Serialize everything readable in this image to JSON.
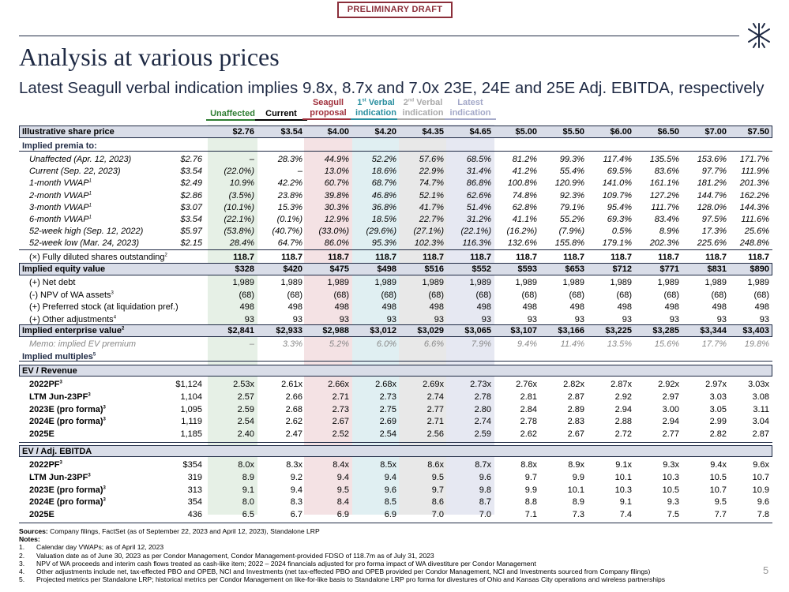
{
  "draft_label": "PRELIMINARY DRAFT",
  "title": "Analysis at various prices",
  "subtitle": "Latest Seagull verbal indication implies 9.8x, 8.7x and 7.0x 23E, 24E and 25E Adj. EBITDA, respectively",
  "column_headers": [
    {
      "lines": [
        "Unaffected"
      ],
      "color": "#2e7d32"
    },
    {
      "lines": [
        "Current"
      ],
      "color": "#000000"
    },
    {
      "lines": [
        "Seagull",
        "proposal"
      ],
      "color": "#a0303c"
    },
    {
      "lines": [
        "1st Verbal",
        "indication"
      ],
      "color": "#2a8fa0"
    },
    {
      "lines": [
        "2nd Verbal",
        "indication"
      ],
      "color": "#aaaaaa"
    },
    {
      "lines": [
        "Latest",
        "indication"
      ],
      "color": "#a3a8c8"
    }
  ],
  "share_price_label": "Illustrative share price",
  "share_prices": [
    "$2.76",
    "$3.54",
    "$4.00",
    "$4.20",
    "$4.35",
    "$4.65",
    "$5.00",
    "$5.50",
    "$6.00",
    "$6.50",
    "$7.00",
    "$7.50"
  ],
  "premia_header": "Implied premia to:",
  "premia_rows": [
    {
      "label": "Unaffected (Apr. 12, 2023)",
      "ref": "$2.76",
      "values": [
        "–",
        "28.3%",
        "44.9%",
        "52.2%",
        "57.6%",
        "68.5%",
        "81.2%",
        "99.3%",
        "117.4%",
        "135.5%",
        "153.6%",
        "171.7%"
      ]
    },
    {
      "label": "Current (Sep. 22, 2023)",
      "ref": "$3.54",
      "values": [
        "(22.0%)",
        "–",
        "13.0%",
        "18.6%",
        "22.9%",
        "31.4%",
        "41.2%",
        "55.4%",
        "69.5%",
        "83.6%",
        "97.7%",
        "111.9%"
      ]
    },
    {
      "label": "1-month VWAP",
      "sup": "1",
      "ref": "$2.49",
      "values": [
        "10.9%",
        "42.2%",
        "60.7%",
        "68.7%",
        "74.7%",
        "86.8%",
        "100.8%",
        "120.9%",
        "141.0%",
        "161.1%",
        "181.2%",
        "201.3%"
      ]
    },
    {
      "label": "2-month VWAP",
      "sup": "1",
      "ref": "$2.86",
      "values": [
        "(3.5%)",
        "23.8%",
        "39.8%",
        "46.8%",
        "52.1%",
        "62.6%",
        "74.8%",
        "92.3%",
        "109.7%",
        "127.2%",
        "144.7%",
        "162.2%"
      ]
    },
    {
      "label": "3-month VWAP",
      "sup": "1",
      "ref": "$3.07",
      "values": [
        "(10.1%)",
        "15.3%",
        "30.3%",
        "36.8%",
        "41.7%",
        "51.4%",
        "62.8%",
        "79.1%",
        "95.4%",
        "111.7%",
        "128.0%",
        "144.3%"
      ]
    },
    {
      "label": "6-month VWAP",
      "sup": "1",
      "ref": "$3.54",
      "values": [
        "(22.1%)",
        "(0.1%)",
        "12.9%",
        "18.5%",
        "22.7%",
        "31.2%",
        "41.1%",
        "55.2%",
        "69.3%",
        "83.4%",
        "97.5%",
        "111.6%"
      ]
    },
    {
      "label": "52-week high (Sep. 12, 2022)",
      "ref": "$5.97",
      "values": [
        "(53.8%)",
        "(40.7%)",
        "(33.0%)",
        "(29.6%)",
        "(27.1%)",
        "(22.1%)",
        "(16.2%)",
        "(7.9%)",
        "0.5%",
        "8.9%",
        "17.3%",
        "25.6%"
      ]
    },
    {
      "label": "52-week low (Mar. 24, 2023)",
      "ref": "$2.15",
      "values": [
        "28.4%",
        "64.7%",
        "86.0%",
        "95.3%",
        "102.3%",
        "116.3%",
        "132.6%",
        "155.8%",
        "179.1%",
        "202.3%",
        "225.6%",
        "248.8%"
      ]
    }
  ],
  "shares_row": {
    "label": "(×) Fully diluted shares outstanding",
    "sup": "2",
    "values": [
      "118.7",
      "118.7",
      "118.7",
      "118.7",
      "118.7",
      "118.7",
      "118.7",
      "118.7",
      "118.7",
      "118.7",
      "118.7",
      "118.7"
    ]
  },
  "equity_row": {
    "label": "Implied equity value",
    "values": [
      "$328",
      "$420",
      "$475",
      "$498",
      "$516",
      "$552",
      "$593",
      "$653",
      "$712",
      "$771",
      "$831",
      "$890"
    ]
  },
  "adjustment_rows": [
    {
      "label": "(+) Net debt",
      "values": [
        "1,989",
        "1,989",
        "1,989",
        "1,989",
        "1,989",
        "1,989",
        "1,989",
        "1,989",
        "1,989",
        "1,989",
        "1,989",
        "1,989"
      ]
    },
    {
      "label": "(-) NPV of WA assets",
      "sup": "3",
      "values": [
        "(68)",
        "(68)",
        "(68)",
        "(68)",
        "(68)",
        "(68)",
        "(68)",
        "(68)",
        "(68)",
        "(68)",
        "(68)",
        "(68)"
      ]
    },
    {
      "label": "(+) Preferred stock (at liquidation pref.)",
      "values": [
        "498",
        "498",
        "498",
        "498",
        "498",
        "498",
        "498",
        "498",
        "498",
        "498",
        "498",
        "498"
      ]
    },
    {
      "label": "(+) Other adjustments",
      "sup": "4",
      "values": [
        "93",
        "93",
        "93",
        "93",
        "93",
        "93",
        "93",
        "93",
        "93",
        "93",
        "93",
        "93"
      ]
    }
  ],
  "ev_row": {
    "label": "Implied enterprise value",
    "sup": "2",
    "values": [
      "$2,841",
      "$2,933",
      "$2,988",
      "$3,012",
      "$3,029",
      "$3,065",
      "$3,107",
      "$3,166",
      "$3,225",
      "$3,285",
      "$3,344",
      "$3,403"
    ]
  },
  "memo_row": {
    "label": "Memo: implied EV premium",
    "values": [
      "–",
      "3.3%",
      "5.2%",
      "6.0%",
      "6.6%",
      "7.9%",
      "9.4%",
      "11.4%",
      "13.5%",
      "15.6%",
      "17.7%",
      "19.8%"
    ]
  },
  "multiples_header": "Implied multiples",
  "multiples_header_sup": "5",
  "sections": [
    {
      "title": "EV / Revenue",
      "rows": [
        {
          "label": "2022PF",
          "sup": "3",
          "metric": "$1,124",
          "values": [
            "2.53x",
            "2.61x",
            "2.66x",
            "2.68x",
            "2.69x",
            "2.73x",
            "2.76x",
            "2.82x",
            "2.87x",
            "2.92x",
            "2.97x",
            "3.03x"
          ]
        },
        {
          "label": "LTM Jun-23PF",
          "sup": "3",
          "metric": "1,104",
          "values": [
            "2.57",
            "2.66",
            "2.71",
            "2.73",
            "2.74",
            "2.78",
            "2.81",
            "2.87",
            "2.92",
            "2.97",
            "3.03",
            "3.08"
          ]
        },
        {
          "label": "2023E (pro forma)",
          "sup": "3",
          "metric": "1,095",
          "values": [
            "2.59",
            "2.68",
            "2.73",
            "2.75",
            "2.77",
            "2.80",
            "2.84",
            "2.89",
            "2.94",
            "3.00",
            "3.05",
            "3.11"
          ]
        },
        {
          "label": "2024E (pro forma)",
          "sup": "3",
          "metric": "1,119",
          "values": [
            "2.54",
            "2.62",
            "2.67",
            "2.69",
            "2.71",
            "2.74",
            "2.78",
            "2.83",
            "2.88",
            "2.94",
            "2.99",
            "3.04"
          ]
        },
        {
          "label": "2025E",
          "metric": "1,185",
          "values": [
            "2.40",
            "2.47",
            "2.52",
            "2.54",
            "2.56",
            "2.59",
            "2.62",
            "2.67",
            "2.72",
            "2.77",
            "2.82",
            "2.87"
          ]
        }
      ]
    },
    {
      "title": "EV / Adj. EBITDA",
      "rows": [
        {
          "label": "2022PF",
          "sup": "3",
          "metric": "$354",
          "values": [
            "8.0x",
            "8.3x",
            "8.4x",
            "8.5x",
            "8.6x",
            "8.7x",
            "8.8x",
            "8.9x",
            "9.1x",
            "9.3x",
            "9.4x",
            "9.6x"
          ]
        },
        {
          "label": "LTM Jun-23PF",
          "sup": "3",
          "metric": "319",
          "values": [
            "8.9",
            "9.2",
            "9.4",
            "9.4",
            "9.5",
            "9.6",
            "9.7",
            "9.9",
            "10.1",
            "10.3",
            "10.5",
            "10.7"
          ]
        },
        {
          "label": "2023E (pro forma)",
          "sup": "3",
          "metric": "313",
          "values": [
            "9.1",
            "9.4",
            "9.5",
            "9.6",
            "9.7",
            "9.8",
            "9.9",
            "10.1",
            "10.3",
            "10.5",
            "10.7",
            "10.9"
          ]
        },
        {
          "label": "2024E (pro forma)",
          "sup": "3",
          "metric": "354",
          "values": [
            "8.0",
            "8.3",
            "8.4",
            "8.5",
            "8.6",
            "8.7",
            "8.8",
            "8.9",
            "9.1",
            "9.3",
            "9.5",
            "9.6"
          ]
        },
        {
          "label": "2025E",
          "metric": "436",
          "values": [
            "6.5",
            "6.7",
            "6.9",
            "6.9",
            "7.0",
            "7.0",
            "7.1",
            "7.3",
            "7.4",
            "7.5",
            "7.7",
            "7.8"
          ]
        }
      ]
    }
  ],
  "sources_label": "Sources:",
  "sources_text": "Company filings, FactSet (as of September 22, 2023 and April 12, 2023), Standalone LRP",
  "notes_label": "Notes:",
  "notes": [
    {
      "n": "1.",
      "text": "Calendar day VWAPs; as of April 12, 2023"
    },
    {
      "n": "2.",
      "text": "Valuation date as of June 30, 2023 as per Condor Management, Condor Management-provided FDSO of 118.7m as of July 31, 2023"
    },
    {
      "n": "3.",
      "text": "NPV of WA proceeds and interim cash flows treated as cash-like item; 2022 – 2024 financials adjusted for pro forma impact of WA divestiture per Condor Management"
    },
    {
      "n": "4.",
      "text": "Other adjustments include net, tax-effected PBO and OPEB, NCI and Investments (net tax-effected PBO and OPEB provided per Condor Management, NCI and Investments sourced from Company filings)"
    },
    {
      "n": "5.",
      "text": "Projected metrics per Standalone LRP; historical metrics per Condor Management on like-for-like basis to Standalone LRP pro forma for divestures of Ohio and Kansas City operations and wireless partnerships"
    }
  ],
  "page_number": "5",
  "colors": {
    "navy": "#1f2a44",
    "band": "#d9dde8",
    "unaffected_shade": "#e6f0e6",
    "seagull_shade": "#f4e2e4",
    "verbal1_shade": "#e0eff2",
    "verbal2_shade": "#e8e8e8",
    "latest_shade": "#e6e8f2"
  }
}
